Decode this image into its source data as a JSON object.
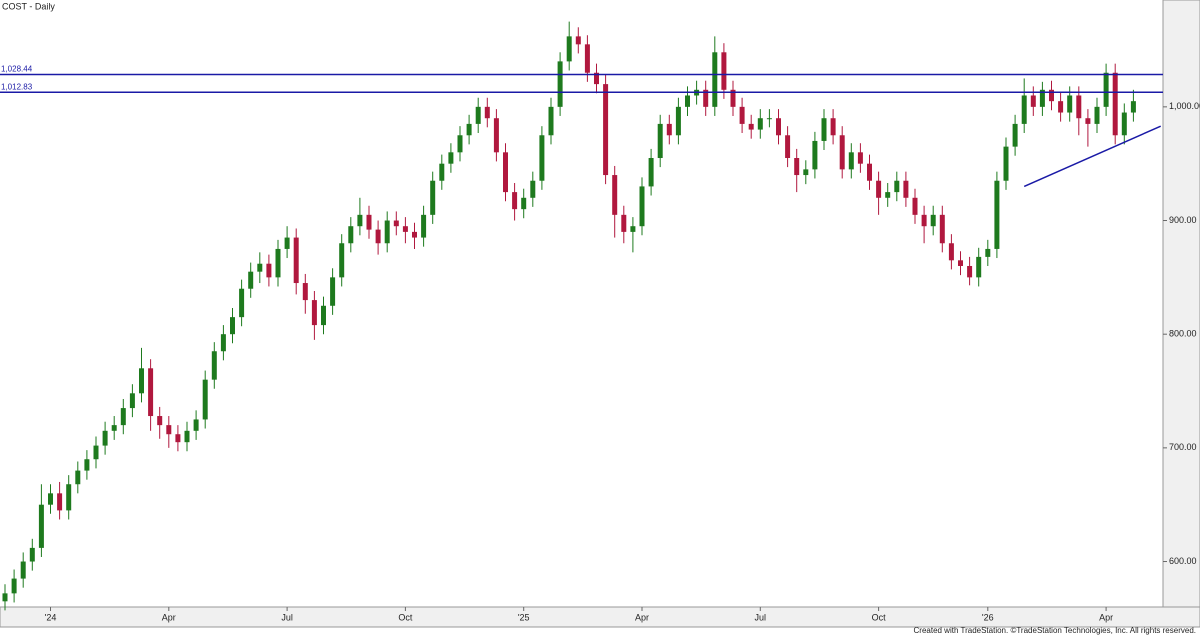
{
  "chart_data": {
    "type": "candlestick",
    "title": "COST - Daily",
    "footer": "Created with TradeStation. ©TradeStation Technologies, Inc. All rights reserved.",
    "up_color": "#1e7a1e",
    "down_color": "#b0183e",
    "line_color": "#1a1aa6",
    "categories": [
      null,
      null,
      null,
      null,
      null,
      "'24",
      null,
      null,
      null,
      null,
      null,
      null,
      null,
      null,
      null,
      null,
      null,
      null,
      "Apr",
      null,
      null,
      null,
      null,
      null,
      null,
      null,
      null,
      null,
      null,
      null,
      null,
      "Jul",
      null,
      null,
      null,
      null,
      null,
      null,
      null,
      null,
      null,
      null,
      null,
      null,
      "Oct",
      null,
      null,
      null,
      null,
      null,
      null,
      null,
      null,
      null,
      null,
      null,
      null,
      "'25",
      null,
      null,
      null,
      null,
      null,
      null,
      null,
      null,
      null,
      null,
      null,
      null,
      "Apr",
      null,
      null,
      null,
      null,
      null,
      null,
      null,
      null,
      null,
      null,
      null,
      null,
      "Jul",
      null,
      null,
      null,
      null,
      null,
      null,
      null,
      null,
      null,
      null,
      null,
      null,
      "Oct",
      null,
      null,
      null,
      null,
      null,
      null,
      null,
      null,
      null,
      null,
      null,
      "'26",
      null,
      null,
      null,
      null,
      null,
      null,
      null,
      null,
      null,
      null,
      null,
      null,
      "Apr",
      null,
      null,
      null
    ],
    "open": [
      565,
      572,
      585,
      600,
      612,
      650,
      660,
      645,
      668,
      680,
      690,
      702,
      715,
      720,
      735,
      748,
      770,
      728,
      720,
      712,
      705,
      715,
      725,
      760,
      785,
      800,
      815,
      840,
      855,
      862,
      850,
      875,
      885,
      845,
      830,
      808,
      825,
      850,
      880,
      895,
      905,
      892,
      880,
      900,
      895,
      890,
      885,
      905,
      935,
      950,
      960,
      975,
      985,
      1000,
      990,
      960,
      925,
      910,
      920,
      935,
      975,
      1000,
      1040,
      1062,
      1055,
      1030,
      1020,
      940,
      905,
      890,
      895,
      930,
      955,
      985,
      975,
      1000,
      1010,
      1015,
      1000,
      1048,
      1015,
      1000,
      985,
      980,
      990,
      990,
      975,
      955,
      940,
      945,
      970,
      990,
      975,
      945,
      960,
      950,
      935,
      920,
      925,
      935,
      920,
      905,
      895,
      905,
      880,
      865,
      860,
      850,
      868,
      875,
      935,
      965,
      985,
      1010,
      1000,
      1015,
      1005,
      995,
      1010,
      990,
      985,
      1000,
      1030,
      975,
      995
    ],
    "high": [
      580,
      593,
      608,
      620,
      668,
      668,
      670,
      676,
      688,
      698,
      710,
      723,
      728,
      743,
      756,
      788,
      778,
      736,
      728,
      720,
      723,
      733,
      768,
      793,
      808,
      823,
      848,
      863,
      872,
      870,
      883,
      895,
      893,
      853,
      838,
      833,
      858,
      888,
      903,
      920,
      913,
      900,
      908,
      908,
      903,
      898,
      913,
      943,
      958,
      968,
      983,
      993,
      1008,
      1008,
      998,
      968,
      933,
      928,
      943,
      983,
      1008,
      1048,
      1075,
      1070,
      1063,
      1038,
      1028,
      948,
      913,
      903,
      938,
      963,
      993,
      993,
      1008,
      1018,
      1023,
      1023,
      1062,
      1056,
      1023,
      1008,
      993,
      998,
      998,
      998,
      983,
      963,
      953,
      978,
      998,
      998,
      983,
      968,
      968,
      958,
      943,
      933,
      943,
      943,
      928,
      913,
      913,
      913,
      888,
      873,
      868,
      876,
      883,
      943,
      973,
      993,
      1025,
      1018,
      1022,
      1023,
      1013,
      1018,
      1018,
      998,
      1008,
      1038,
      1038,
      1003,
      1015
    ],
    "low": [
      557,
      564,
      577,
      592,
      604,
      642,
      637,
      637,
      660,
      672,
      682,
      694,
      707,
      712,
      727,
      740,
      715,
      708,
      700,
      697,
      697,
      707,
      717,
      752,
      777,
      792,
      807,
      832,
      845,
      842,
      842,
      867,
      835,
      818,
      795,
      800,
      817,
      842,
      872,
      887,
      884,
      870,
      872,
      887,
      880,
      875,
      877,
      897,
      927,
      942,
      952,
      967,
      977,
      982,
      952,
      917,
      900,
      902,
      912,
      927,
      967,
      992,
      1032,
      1047,
      1022,
      1012,
      932,
      885,
      880,
      872,
      887,
      922,
      947,
      967,
      967,
      992,
      1002,
      992,
      992,
      1007,
      992,
      977,
      972,
      972,
      982,
      967,
      947,
      925,
      932,
      937,
      962,
      967,
      937,
      937,
      942,
      927,
      905,
      912,
      917,
      912,
      897,
      880,
      887,
      872,
      857,
      852,
      843,
      842,
      860,
      867,
      927,
      957,
      977,
      992,
      992,
      997,
      987,
      987,
      975,
      965,
      977,
      992,
      967,
      967,
      987
    ],
    "close": [
      572,
      585,
      600,
      612,
      650,
      660,
      645,
      668,
      680,
      690,
      702,
      715,
      720,
      735,
      748,
      770,
      728,
      720,
      712,
      705,
      715,
      725,
      760,
      785,
      800,
      815,
      840,
      855,
      862,
      850,
      875,
      885,
      845,
      830,
      808,
      825,
      850,
      880,
      895,
      905,
      892,
      880,
      900,
      895,
      890,
      885,
      905,
      935,
      950,
      960,
      975,
      985,
      1000,
      990,
      960,
      925,
      910,
      920,
      935,
      975,
      1000,
      1040,
      1062,
      1055,
      1030,
      1020,
      940,
      905,
      890,
      895,
      930,
      955,
      985,
      975,
      1000,
      1010,
      1015,
      1000,
      1048,
      1015,
      1000,
      985,
      980,
      990,
      990,
      975,
      955,
      940,
      945,
      970,
      990,
      975,
      945,
      960,
      950,
      935,
      920,
      925,
      935,
      920,
      905,
      895,
      905,
      880,
      865,
      860,
      850,
      868,
      875,
      935,
      965,
      985,
      1010,
      1000,
      1015,
      1005,
      995,
      1010,
      990,
      985,
      1000,
      1030,
      975,
      995,
      1005
    ],
    "ylim": [
      560,
      1094
    ],
    "yticks": [
      {
        "value": 600,
        "label": "600.00"
      },
      {
        "value": 700,
        "label": "700.00"
      },
      {
        "value": 800,
        "label": "800.00"
      },
      {
        "value": 900,
        "label": "900.00"
      },
      {
        "value": 1000,
        "label": "1,000.00"
      }
    ],
    "hlines": [
      {
        "value": 1028.44,
        "label": "1,028.44"
      },
      {
        "value": 1012.83,
        "label": "1,012.83"
      }
    ],
    "trendline": {
      "x": [
        112,
        127
      ],
      "y": [
        930,
        983
      ]
    }
  }
}
